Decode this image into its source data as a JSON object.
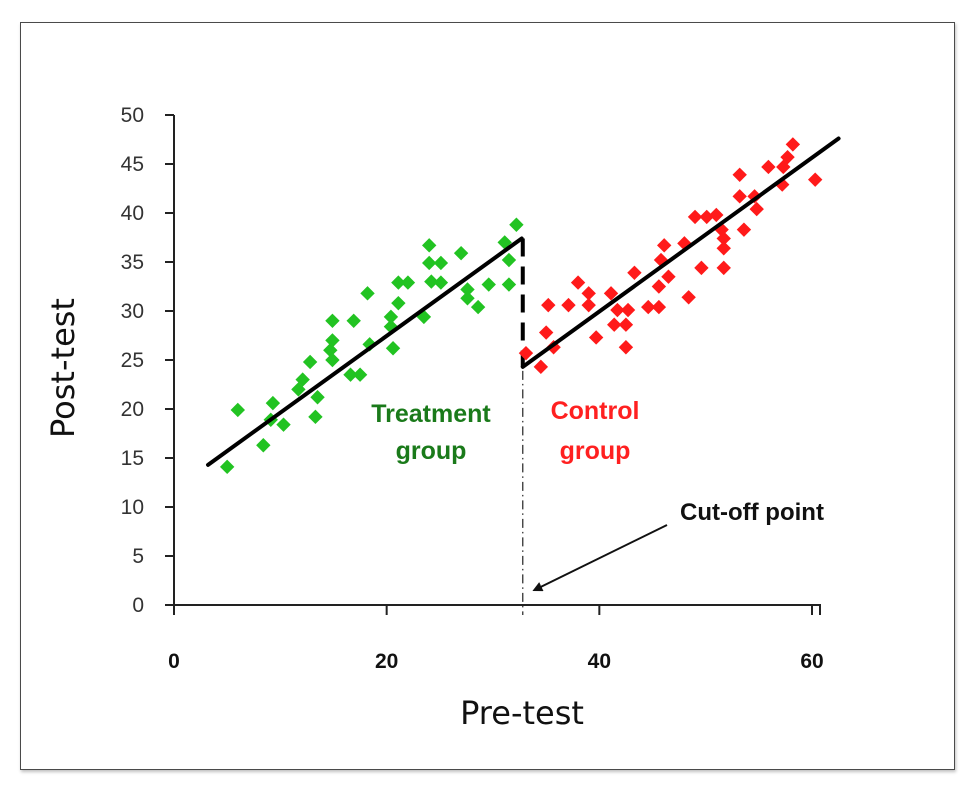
{
  "chart_data": {
    "type": "scatter",
    "title": "",
    "xlabel": "Pre-test",
    "ylabel": "Post-test",
    "xlim": [
      0,
      60
    ],
    "ylim": [
      0,
      50
    ],
    "x_ticks": [
      0,
      20,
      40,
      60
    ],
    "x_tick_labels": [
      "0",
      "20",
      "40",
      "60"
    ],
    "y_ticks": [
      0,
      5,
      10,
      15,
      20,
      25,
      30,
      35,
      40,
      45,
      50
    ],
    "y_tick_labels": [
      "0",
      "5",
      "10",
      "15",
      "20",
      "25",
      "30",
      "35",
      "40",
      "45",
      "50"
    ],
    "grid": false,
    "cutoff_x": 32.8,
    "series": [
      {
        "name": "Treatment group",
        "label_lines": [
          "Treatment",
          "group"
        ],
        "color": "#22c322",
        "label_color": "#1a7a1a",
        "marker": "diamond",
        "points": [
          [
            5.0,
            14.1
          ],
          [
            6.0,
            19.9
          ],
          [
            8.4,
            16.3
          ],
          [
            9.3,
            20.6
          ],
          [
            9.1,
            18.9
          ],
          [
            10.3,
            18.4
          ],
          [
            12.1,
            23.0
          ],
          [
            11.7,
            22.0
          ],
          [
            12.8,
            24.8
          ],
          [
            13.3,
            19.2
          ],
          [
            13.5,
            21.2
          ],
          [
            14.7,
            26.0
          ],
          [
            14.9,
            29.0
          ],
          [
            16.9,
            29.0
          ],
          [
            18.2,
            31.8
          ],
          [
            14.9,
            27.0
          ],
          [
            14.9,
            25.0
          ],
          [
            16.6,
            23.5
          ],
          [
            17.5,
            23.5
          ],
          [
            18.4,
            26.6
          ],
          [
            20.6,
            26.2
          ],
          [
            20.4,
            28.4
          ],
          [
            20.4,
            29.4
          ],
          [
            21.1,
            30.8
          ],
          [
            21.1,
            32.9
          ],
          [
            22.0,
            32.9
          ],
          [
            23.5,
            29.4
          ],
          [
            24.0,
            36.7
          ],
          [
            24.0,
            34.9
          ],
          [
            25.1,
            34.9
          ],
          [
            24.2,
            33.0
          ],
          [
            25.1,
            32.9
          ],
          [
            27.0,
            35.9
          ],
          [
            27.6,
            32.2
          ],
          [
            27.6,
            31.3
          ],
          [
            28.6,
            30.4
          ],
          [
            29.6,
            32.7
          ],
          [
            31.1,
            37.0
          ],
          [
            31.5,
            35.2
          ],
          [
            31.5,
            32.7
          ],
          [
            32.2,
            38.8
          ]
        ],
        "fit_line": [
          [
            3.2,
            14.3
          ],
          [
            32.7,
            37.4
          ]
        ]
      },
      {
        "name": "Control group",
        "label_lines": [
          "Control",
          "group"
        ],
        "color": "#ff1a1a",
        "label_color": "#ff2020",
        "marker": "diamond",
        "points": [
          [
            33.1,
            25.7
          ],
          [
            34.5,
            24.3
          ],
          [
            35.0,
            27.8
          ],
          [
            35.7,
            26.3
          ],
          [
            35.2,
            30.6
          ],
          [
            37.1,
            30.6
          ],
          [
            38.0,
            32.9
          ],
          [
            39.0,
            31.8
          ],
          [
            39.0,
            30.6
          ],
          [
            39.7,
            27.3
          ],
          [
            41.1,
            31.8
          ],
          [
            41.7,
            30.1
          ],
          [
            42.7,
            30.1
          ],
          [
            41.4,
            28.6
          ],
          [
            42.5,
            28.6
          ],
          [
            42.5,
            26.3
          ],
          [
            43.3,
            33.9
          ],
          [
            44.6,
            30.4
          ],
          [
            45.6,
            30.4
          ],
          [
            45.6,
            32.5
          ],
          [
            46.5,
            33.5
          ],
          [
            48.4,
            31.4
          ],
          [
            46.1,
            36.7
          ],
          [
            48.0,
            36.9
          ],
          [
            45.8,
            35.2
          ],
          [
            49.6,
            34.4
          ],
          [
            51.7,
            34.4
          ],
          [
            49.0,
            39.6
          ],
          [
            50.1,
            39.6
          ],
          [
            51.0,
            39.8
          ],
          [
            51.5,
            38.3
          ],
          [
            51.7,
            37.4
          ],
          [
            51.7,
            36.4
          ],
          [
            53.6,
            38.3
          ],
          [
            53.2,
            41.7
          ],
          [
            54.6,
            41.7
          ],
          [
            54.8,
            40.4
          ],
          [
            53.2,
            43.9
          ],
          [
            55.9,
            44.7
          ],
          [
            57.2,
            42.9
          ],
          [
            57.3,
            44.7
          ],
          [
            57.7,
            45.7
          ],
          [
            58.2,
            47.0
          ],
          [
            60.3,
            43.4
          ]
        ],
        "fit_line": [
          [
            32.8,
            24.3
          ],
          [
            62.5,
            47.6
          ]
        ]
      }
    ],
    "annotations": [
      {
        "text": "Cut-off point",
        "points_to": [
          33.5,
          0.5
        ]
      }
    ]
  }
}
